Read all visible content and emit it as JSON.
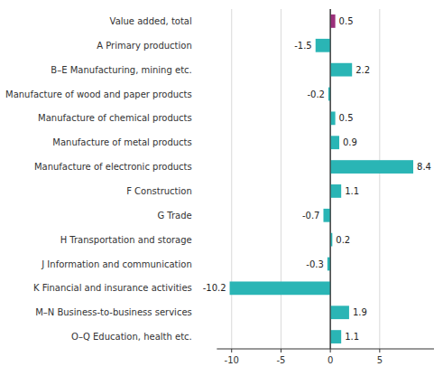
{
  "chart_data": {
    "type": "bar",
    "orientation": "horizontal",
    "categories": [
      "Value added, total",
      "A Primary production",
      "B–E Manufacturing, mining etc.",
      "Manufacture of wood and paper products",
      "Manufacture of chemical products",
      "Manufacture of metal products",
      "Manufacture of electronic products",
      "F Construction",
      "G Trade",
      "H Transportation and storage",
      "J Information and communication",
      "K Financial and insurance activities",
      "M–N Business-to-business services",
      "O–Q Education, health etc."
    ],
    "values": [
      0.5,
      -1.5,
      2.2,
      -0.2,
      0.5,
      0.9,
      8.4,
      1.1,
      -0.7,
      0.2,
      -0.3,
      -10.2,
      1.9,
      1.1
    ],
    "colors": [
      "#9b2f7b",
      "#2ab5b5",
      "#2ab5b5",
      "#2ab5b5",
      "#2ab5b5",
      "#2ab5b5",
      "#2ab5b5",
      "#2ab5b5",
      "#2ab5b5",
      "#2ab5b5",
      "#2ab5b5",
      "#2ab5b5",
      "#2ab5b5",
      "#2ab5b5"
    ],
    "xlim": [
      -11.5,
      10.5
    ],
    "xticks": [
      -10,
      -5,
      0,
      5
    ],
    "grid": true,
    "data_labels": true
  }
}
